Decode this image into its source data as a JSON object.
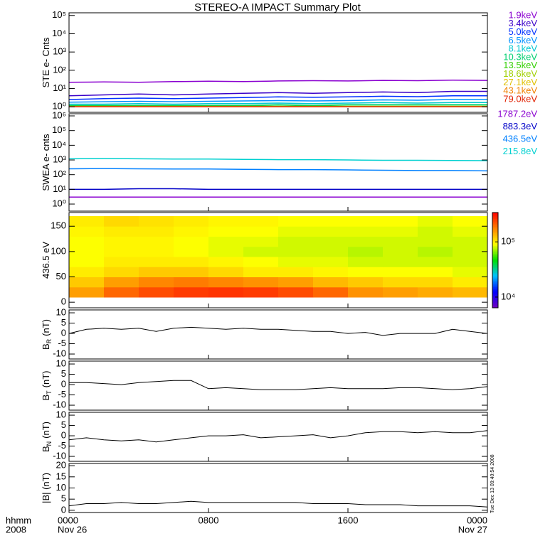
{
  "title": "STEREO-A IMPACT Summary Plot",
  "stamp": "Tue Dec 13 09:40:54 2008",
  "x_axis": {
    "name": "hhmm",
    "year": "2008",
    "xlim": [
      0,
      24
    ],
    "xticks": [
      {
        "value": 0,
        "label": "0000"
      },
      {
        "value": 8,
        "label": "0800"
      },
      {
        "value": 16,
        "label": "1600"
      },
      {
        "value": 24,
        "label": "0000"
      }
    ],
    "dates": [
      {
        "value": 0,
        "label": "Nov 26"
      },
      {
        "value": 24,
        "label": "Nov 27"
      }
    ]
  },
  "chart_data": [
    {
      "type": "line",
      "ylabel": "STE e- Cnts",
      "log": true,
      "ylim": [
        0.5,
        140000
      ],
      "yticks": [
        {
          "value": 1,
          "label": "10⁰"
        },
        {
          "value": 10,
          "label": "10¹"
        },
        {
          "value": 100,
          "label": "10²"
        },
        {
          "value": 1000,
          "label": "10³"
        },
        {
          "value": 10000,
          "label": "10⁴"
        },
        {
          "value": 100000,
          "label": "10⁵"
        }
      ],
      "x": [
        0,
        2,
        4,
        6,
        8,
        10,
        12,
        14,
        16,
        18,
        20,
        22,
        24
      ],
      "series": [
        {
          "name": "1.9keV",
          "color": "#8a00d0",
          "values": [
            22,
            23,
            22,
            24,
            25,
            24,
            26,
            27,
            26,
            28,
            27,
            29,
            28
          ]
        },
        {
          "name": "3.4keV",
          "color": "#3a00c8",
          "values": [
            4,
            4.5,
            5,
            4.5,
            5,
            5.5,
            6,
            5.5,
            6,
            6.5,
            6,
            7,
            7
          ]
        },
        {
          "name": "5.0keV",
          "color": "#0030ff",
          "values": [
            2.5,
            2.8,
            3,
            2.8,
            3,
            3.2,
            3.5,
            3.3,
            3.5,
            3.8,
            3.6,
            4,
            4
          ]
        },
        {
          "name": "6.5keV",
          "color": "#0090ff",
          "values": [
            1.8,
            1.9,
            2,
            1.9,
            2,
            2.1,
            2.2,
            2.1,
            2.2,
            2.4,
            2.3,
            2.5,
            2.5
          ]
        },
        {
          "name": "8.1keV",
          "color": "#00c8d0",
          "values": [
            1.4,
            1.4,
            1.5,
            1.4,
            1.5,
            1.5,
            1.6,
            1.5,
            1.6,
            1.7,
            1.6,
            1.7,
            1.7
          ]
        },
        {
          "name": "10.3keV",
          "color": "#00d070",
          "values": [
            1.2,
            1.2,
            1.2,
            1.2,
            1.2,
            1.2,
            1.3,
            1.2,
            1.3,
            1.3,
            1.3,
            1.3,
            1.3
          ]
        },
        {
          "name": "13.5keV",
          "color": "#30d000",
          "values": [
            1.1,
            1.1,
            1.1,
            1.1,
            1.1,
            1.1,
            1.1,
            1.1,
            1.1,
            1.1,
            1.1,
            1.1,
            1.1
          ]
        },
        {
          "name": "18.6keV",
          "color": "#a0d000",
          "values": [
            1.05,
            1.05,
            1.05,
            1.05,
            1.05,
            1.05,
            1.05,
            1.05,
            1.05,
            1.05,
            1.05,
            1.05,
            1.05
          ]
        },
        {
          "name": "27.1keV",
          "color": "#e0c000",
          "values": [
            1.02,
            1.02,
            1.02,
            1.02,
            1.02,
            1.02,
            1.02,
            1.02,
            1.02,
            1.02,
            1.02,
            1.02,
            1.02
          ]
        },
        {
          "name": "43.1keV",
          "color": "#f08000",
          "values": [
            1,
            1,
            1,
            1,
            1,
            1,
            1,
            1,
            1,
            1,
            1,
            1,
            1
          ]
        },
        {
          "name": "79.0keV",
          "color": "#e02000",
          "values": [
            1,
            1,
            1,
            1,
            1,
            1,
            1,
            1,
            1,
            1,
            1,
            1,
            1
          ]
        }
      ]
    },
    {
      "type": "line",
      "ylabel": "SWEA e- cnts",
      "log": true,
      "ylim": [
        0.33,
        1400000
      ],
      "yticks": [
        {
          "value": 1,
          "label": "10⁰"
        },
        {
          "value": 10,
          "label": "10¹"
        },
        {
          "value": 100,
          "label": "10²"
        },
        {
          "value": 1000,
          "label": "10³"
        },
        {
          "value": 10000,
          "label": "10⁴"
        },
        {
          "value": 100000,
          "label": "10⁵"
        },
        {
          "value": 1000000,
          "label": "10⁶"
        }
      ],
      "x": [
        0,
        2,
        4,
        6,
        8,
        10,
        12,
        14,
        16,
        18,
        20,
        22,
        24
      ],
      "series": [
        {
          "name": "1787.2eV",
          "color": "#8a00d0",
          "values": [
            3,
            3,
            3,
            3,
            3,
            3,
            3,
            3,
            3,
            3,
            3,
            3,
            3
          ]
        },
        {
          "name": "883.3eV",
          "color": "#0000c8",
          "values": [
            10,
            10,
            11,
            11,
            10,
            10,
            10,
            10,
            10,
            10,
            10,
            10,
            10
          ]
        },
        {
          "name": "436.5eV",
          "color": "#0080ff",
          "values": [
            250,
            260,
            250,
            240,
            240,
            230,
            220,
            220,
            210,
            200,
            190,
            190,
            180
          ]
        },
        {
          "name": "215.8eV",
          "color": "#00d0d0",
          "values": [
            1200,
            1250,
            1200,
            1150,
            1150,
            1100,
            1050,
            1050,
            1000,
            950,
            950,
            920,
            900
          ]
        }
      ]
    },
    {
      "type": "heatmap",
      "ylabel": "436.5 eV",
      "ylim": [
        -11,
        177
      ],
      "yticks": [
        0,
        50,
        100,
        150
      ],
      "x_edges": [
        0,
        2,
        4,
        6,
        8,
        10,
        12,
        14,
        16,
        18,
        20,
        22,
        24
      ],
      "y_edges": [
        10,
        30,
        50,
        70,
        90,
        110,
        130,
        150,
        170
      ],
      "z": [
        [
          150000,
          200000,
          230000,
          250000,
          260000,
          250000,
          230000,
          200000,
          160000,
          150000,
          140000,
          130000
        ],
        [
          120000,
          150000,
          170000,
          180000,
          170000,
          160000,
          150000,
          130000,
          120000,
          110000,
          110000,
          100000
        ],
        [
          100000,
          110000,
          120000,
          120000,
          110000,
          100000,
          100000,
          95000,
          90000,
          90000,
          90000,
          85000
        ],
        [
          90000,
          100000,
          100000,
          100000,
          95000,
          90000,
          85000,
          85000,
          80000,
          80000,
          80000,
          80000
        ],
        [
          90000,
          95000,
          95000,
          90000,
          85000,
          80000,
          80000,
          80000,
          75000,
          80000,
          75000,
          80000
        ],
        [
          90000,
          95000,
          95000,
          90000,
          85000,
          85000,
          80000,
          80000,
          80000,
          80000,
          80000,
          80000
        ],
        [
          95000,
          100000,
          100000,
          95000,
          90000,
          90000,
          85000,
          85000,
          85000,
          85000,
          80000,
          85000
        ],
        [
          100000,
          110000,
          105000,
          100000,
          95000,
          95000,
          90000,
          90000,
          90000,
          90000,
          85000,
          90000
        ]
      ],
      "zlim": [
        6400,
        340000
      ],
      "zticks": [
        {
          "value": 10000,
          "label": "10⁴"
        },
        {
          "value": 100000,
          "label": "10⁵"
        }
      ],
      "colormap": [
        "#7000c0",
        "#0000ff",
        "#00c0ff",
        "#00e000",
        "#ffff00",
        "#ff8000",
        "#ff0000"
      ]
    },
    {
      "type": "line",
      "ylabel": "B",
      "ylabel_sub": "R",
      "ylabel_unit": "(nT)",
      "ylim": [
        -12.4,
        11.4
      ],
      "yticks": [
        -10,
        -5,
        0,
        5,
        10
      ],
      "x": [
        0,
        1,
        2,
        3,
        4,
        5,
        6,
        7,
        8,
        9,
        10,
        11,
        12,
        13,
        14,
        15,
        16,
        17,
        18,
        19,
        20,
        21,
        22,
        23,
        24
      ],
      "series": [
        {
          "color": "#000000",
          "values": [
            0,
            2,
            2.5,
            2,
            2.5,
            1,
            2.5,
            3,
            2.5,
            2,
            2.5,
            2,
            2,
            1.5,
            1,
            1,
            0,
            0.5,
            -1,
            0,
            0,
            0,
            2,
            1,
            0
          ]
        }
      ]
    },
    {
      "type": "line",
      "ylabel": "B",
      "ylabel_sub": "T",
      "ylabel_unit": "(nT)",
      "ylim": [
        -12.4,
        11.4
      ],
      "yticks": [
        -10,
        -5,
        0,
        5,
        10
      ],
      "x": [
        0,
        1,
        2,
        3,
        4,
        5,
        6,
        7,
        8,
        9,
        10,
        11,
        12,
        13,
        14,
        15,
        16,
        17,
        18,
        19,
        20,
        21,
        22,
        23,
        24
      ],
      "series": [
        {
          "color": "#000000",
          "values": [
            1,
            1,
            0.5,
            0,
            1,
            1.5,
            2,
            2,
            -2,
            -1.5,
            -2,
            -2.5,
            -2.5,
            -2.5,
            -2,
            -1.5,
            -2,
            -2,
            -2,
            -1.5,
            -1.5,
            -2,
            -2.5,
            -2,
            -1
          ]
        }
      ]
    },
    {
      "type": "line",
      "ylabel": "B",
      "ylabel_sub": "N",
      "ylabel_unit": "(nT)",
      "ylim": [
        -12.4,
        11.4
      ],
      "yticks": [
        -10,
        -5,
        0,
        5,
        10
      ],
      "x": [
        0,
        1,
        2,
        3,
        4,
        5,
        6,
        7,
        8,
        9,
        10,
        11,
        12,
        13,
        14,
        15,
        16,
        17,
        18,
        19,
        20,
        21,
        22,
        23,
        24
      ],
      "series": [
        {
          "color": "#000000",
          "values": [
            -2,
            -1,
            -2,
            -2.5,
            -2,
            -3,
            -2,
            -1,
            0,
            0,
            0.5,
            -1,
            -0.5,
            0,
            0.5,
            -1,
            0,
            1.5,
            2,
            2,
            1.5,
            2,
            1.5,
            1.5,
            2.5
          ]
        }
      ]
    },
    {
      "type": "line",
      "ylabel": "|B| (nT)",
      "ylim": [
        -1,
        21
      ],
      "yticks": [
        0,
        5,
        10,
        15,
        20
      ],
      "x": [
        0,
        1,
        2,
        3,
        4,
        5,
        6,
        7,
        8,
        9,
        10,
        11,
        12,
        13,
        14,
        15,
        16,
        17,
        18,
        19,
        20,
        21,
        22,
        23,
        24
      ],
      "series": [
        {
          "color": "#000000",
          "values": [
            2,
            3,
            3,
            3.5,
            3,
            3,
            3.5,
            4,
            3.5,
            3.5,
            3.5,
            3.5,
            3.5,
            3.5,
            3,
            3,
            3,
            2.5,
            2.5,
            2.5,
            2,
            2,
            2,
            2,
            1.5
          ]
        }
      ]
    }
  ]
}
